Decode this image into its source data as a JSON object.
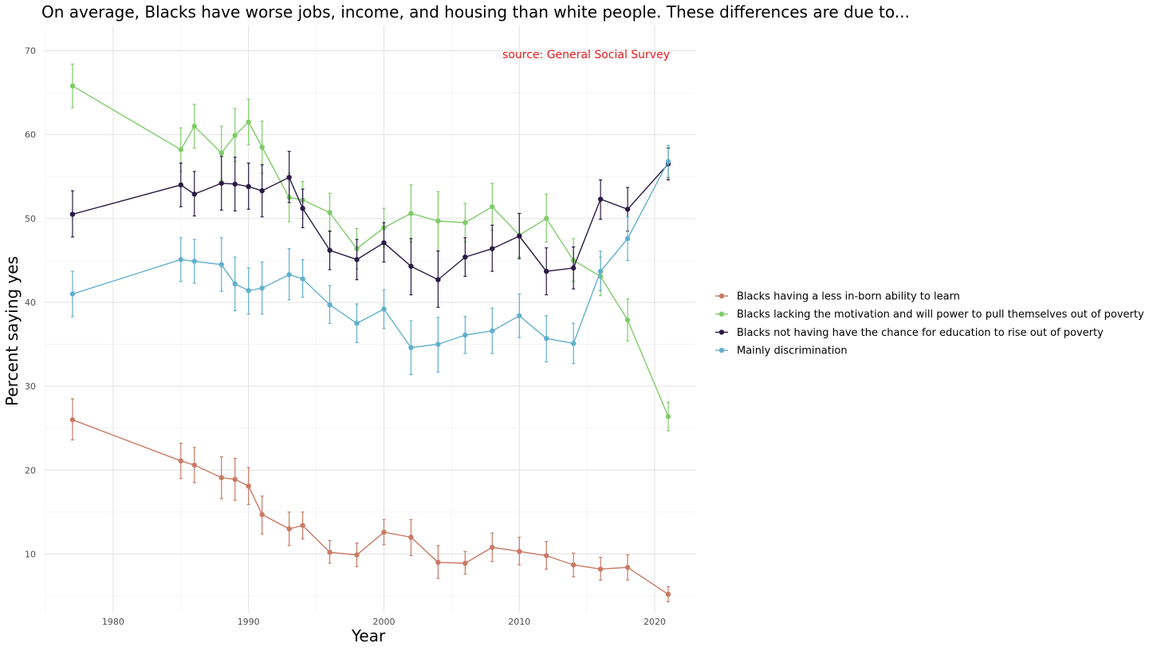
{
  "chart_data": {
    "type": "line",
    "title": "On average, Blacks have worse jobs, income, and housing than white people. These differences are due to...",
    "annotation": "source: General Social Survey",
    "xlabel": "Year",
    "ylabel": "Percent saying yes",
    "xlim": [
      1975,
      2023
    ],
    "ylim": [
      3,
      73
    ],
    "x_ticks": [
      1980,
      1990,
      2000,
      2010,
      2020
    ],
    "y_ticks": [
      10,
      20,
      30,
      40,
      50,
      60,
      70
    ],
    "grid": true,
    "legend_position": "right",
    "colors": {
      "annotation": "#e41a1c"
    },
    "series": [
      {
        "name": "Blacks having a less in-born ability to learn",
        "color": "#c97a64",
        "points": [
          {
            "x": 1977,
            "y": 26.0,
            "lo": 23.6,
            "hi": 28.5
          },
          {
            "x": 1985,
            "y": 21.1,
            "lo": 19.0,
            "hi": 23.2
          },
          {
            "x": 1986,
            "y": 20.6,
            "lo": 18.5,
            "hi": 22.7
          },
          {
            "x": 1988,
            "y": 19.1,
            "lo": 16.6,
            "hi": 21.6
          },
          {
            "x": 1989,
            "y": 18.9,
            "lo": 16.4,
            "hi": 21.4
          },
          {
            "x": 1990,
            "y": 18.1,
            "lo": 15.9,
            "hi": 20.3
          },
          {
            "x": 1991,
            "y": 14.7,
            "lo": 12.4,
            "hi": 16.9
          },
          {
            "x": 1993,
            "y": 13.0,
            "lo": 11.0,
            "hi": 15.0
          },
          {
            "x": 1994,
            "y": 13.4,
            "lo": 11.8,
            "hi": 15.0
          },
          {
            "x": 1996,
            "y": 10.2,
            "lo": 8.9,
            "hi": 11.6
          },
          {
            "x": 1998,
            "y": 9.9,
            "lo": 8.5,
            "hi": 11.3
          },
          {
            "x": 2000,
            "y": 12.6,
            "lo": 11.1,
            "hi": 14.1
          },
          {
            "x": 2002,
            "y": 12.0,
            "lo": 9.8,
            "hi": 14.1
          },
          {
            "x": 2004,
            "y": 9.0,
            "lo": 7.1,
            "hi": 11.0
          },
          {
            "x": 2006,
            "y": 8.9,
            "lo": 7.6,
            "hi": 10.3
          },
          {
            "x": 2008,
            "y": 10.8,
            "lo": 9.1,
            "hi": 12.5
          },
          {
            "x": 2010,
            "y": 10.3,
            "lo": 8.7,
            "hi": 12.0
          },
          {
            "x": 2012,
            "y": 9.8,
            "lo": 8.2,
            "hi": 11.5
          },
          {
            "x": 2014,
            "y": 8.7,
            "lo": 7.3,
            "hi": 10.1
          },
          {
            "x": 2016,
            "y": 8.2,
            "lo": 6.9,
            "hi": 9.6
          },
          {
            "x": 2018,
            "y": 8.4,
            "lo": 6.9,
            "hi": 9.9
          },
          {
            "x": 2021,
            "y": 5.2,
            "lo": 4.3,
            "hi": 6.1
          }
        ]
      },
      {
        "name": "Blacks lacking the motivation and will power to pull themselves out of poverty",
        "color": "#7fcc6a",
        "points": [
          {
            "x": 1977,
            "y": 65.8,
            "lo": 63.2,
            "hi": 68.4
          },
          {
            "x": 1985,
            "y": 58.2,
            "lo": 55.6,
            "hi": 60.8
          },
          {
            "x": 1986,
            "y": 61.0,
            "lo": 58.4,
            "hi": 63.6
          },
          {
            "x": 1988,
            "y": 57.8,
            "lo": 54.6,
            "hi": 61.0
          },
          {
            "x": 1989,
            "y": 59.9,
            "lo": 56.8,
            "hi": 63.1
          },
          {
            "x": 1990,
            "y": 61.5,
            "lo": 58.8,
            "hi": 64.2
          },
          {
            "x": 1991,
            "y": 58.5,
            "lo": 55.4,
            "hi": 61.6
          },
          {
            "x": 1993,
            "y": 52.5,
            "lo": 49.6,
            "hi": 55.4
          },
          {
            "x": 1994,
            "y": 52.2,
            "lo": 50.0,
            "hi": 54.4
          },
          {
            "x": 1996,
            "y": 50.7,
            "lo": 48.4,
            "hi": 53.0
          },
          {
            "x": 1998,
            "y": 46.4,
            "lo": 44.0,
            "hi": 48.8
          },
          {
            "x": 2000,
            "y": 48.9,
            "lo": 46.6,
            "hi": 51.2
          },
          {
            "x": 2002,
            "y": 50.6,
            "lo": 47.2,
            "hi": 54.0
          },
          {
            "x": 2004,
            "y": 49.7,
            "lo": 46.2,
            "hi": 53.2
          },
          {
            "x": 2006,
            "y": 49.5,
            "lo": 47.2,
            "hi": 51.8
          },
          {
            "x": 2008,
            "y": 51.4,
            "lo": 48.6,
            "hi": 54.2
          },
          {
            "x": 2010,
            "y": 48.0,
            "lo": 45.4,
            "hi": 50.6
          },
          {
            "x": 2012,
            "y": 50.0,
            "lo": 47.2,
            "hi": 52.9
          },
          {
            "x": 2014,
            "y": 45.0,
            "lo": 42.5,
            "hi": 47.6
          },
          {
            "x": 2016,
            "y": 43.1,
            "lo": 40.8,
            "hi": 45.4
          },
          {
            "x": 2018,
            "y": 37.9,
            "lo": 35.4,
            "hi": 40.4
          },
          {
            "x": 2021,
            "y": 26.4,
            "lo": 24.7,
            "hi": 28.1
          }
        ]
      },
      {
        "name": "Blacks not having have the chance for education to rise out of poverty",
        "color": "#2b1a45",
        "points": [
          {
            "x": 1977,
            "y": 50.5,
            "lo": 47.8,
            "hi": 53.3
          },
          {
            "x": 1985,
            "y": 54.0,
            "lo": 51.4,
            "hi": 56.6
          },
          {
            "x": 1986,
            "y": 52.9,
            "lo": 50.3,
            "hi": 55.6
          },
          {
            "x": 1988,
            "y": 54.2,
            "lo": 51.0,
            "hi": 57.4
          },
          {
            "x": 1989,
            "y": 54.1,
            "lo": 50.9,
            "hi": 57.3
          },
          {
            "x": 1990,
            "y": 53.8,
            "lo": 51.1,
            "hi": 56.6
          },
          {
            "x": 1991,
            "y": 53.3,
            "lo": 50.2,
            "hi": 56.4
          },
          {
            "x": 1993,
            "y": 54.9,
            "lo": 51.9,
            "hi": 58.0
          },
          {
            "x": 1994,
            "y": 51.2,
            "lo": 48.9,
            "hi": 53.5
          },
          {
            "x": 1996,
            "y": 46.2,
            "lo": 43.9,
            "hi": 48.5
          },
          {
            "x": 1998,
            "y": 45.1,
            "lo": 42.7,
            "hi": 47.5
          },
          {
            "x": 2000,
            "y": 47.1,
            "lo": 44.8,
            "hi": 49.5
          },
          {
            "x": 2002,
            "y": 44.3,
            "lo": 40.9,
            "hi": 47.6
          },
          {
            "x": 2004,
            "y": 42.7,
            "lo": 39.4,
            "hi": 46.1
          },
          {
            "x": 2006,
            "y": 45.4,
            "lo": 43.1,
            "hi": 47.7
          },
          {
            "x": 2008,
            "y": 46.4,
            "lo": 43.7,
            "hi": 49.2
          },
          {
            "x": 2010,
            "y": 47.9,
            "lo": 45.2,
            "hi": 50.6
          },
          {
            "x": 2012,
            "y": 43.7,
            "lo": 40.9,
            "hi": 46.5
          },
          {
            "x": 2014,
            "y": 44.1,
            "lo": 41.6,
            "hi": 46.6
          },
          {
            "x": 2016,
            "y": 52.3,
            "lo": 49.9,
            "hi": 54.6
          },
          {
            "x": 2018,
            "y": 51.1,
            "lo": 48.5,
            "hi": 53.7
          },
          {
            "x": 2021,
            "y": 56.5,
            "lo": 54.6,
            "hi": 58.4
          }
        ]
      },
      {
        "name": "Mainly discrimination",
        "color": "#62b0cd",
        "points": [
          {
            "x": 1977,
            "y": 41.0,
            "lo": 38.3,
            "hi": 43.7
          },
          {
            "x": 1985,
            "y": 45.1,
            "lo": 42.5,
            "hi": 47.7
          },
          {
            "x": 1986,
            "y": 44.9,
            "lo": 42.3,
            "hi": 47.5
          },
          {
            "x": 1988,
            "y": 44.5,
            "lo": 41.3,
            "hi": 47.7
          },
          {
            "x": 1989,
            "y": 42.2,
            "lo": 39.0,
            "hi": 45.4
          },
          {
            "x": 1990,
            "y": 41.4,
            "lo": 38.6,
            "hi": 44.1
          },
          {
            "x": 1991,
            "y": 41.7,
            "lo": 38.6,
            "hi": 44.8
          },
          {
            "x": 1993,
            "y": 43.3,
            "lo": 40.3,
            "hi": 46.4
          },
          {
            "x": 1994,
            "y": 42.8,
            "lo": 40.6,
            "hi": 45.1
          },
          {
            "x": 1996,
            "y": 39.7,
            "lo": 37.5,
            "hi": 42.0
          },
          {
            "x": 1998,
            "y": 37.5,
            "lo": 35.2,
            "hi": 39.8
          },
          {
            "x": 2000,
            "y": 39.2,
            "lo": 36.9,
            "hi": 41.5
          },
          {
            "x": 2002,
            "y": 34.6,
            "lo": 31.4,
            "hi": 37.8
          },
          {
            "x": 2004,
            "y": 35.0,
            "lo": 31.7,
            "hi": 38.2
          },
          {
            "x": 2006,
            "y": 36.1,
            "lo": 33.9,
            "hi": 38.3
          },
          {
            "x": 2008,
            "y": 36.6,
            "lo": 33.9,
            "hi": 39.3
          },
          {
            "x": 2010,
            "y": 38.4,
            "lo": 35.8,
            "hi": 41.0
          },
          {
            "x": 2012,
            "y": 35.7,
            "lo": 32.9,
            "hi": 38.4
          },
          {
            "x": 2014,
            "y": 35.1,
            "lo": 32.7,
            "hi": 37.5
          },
          {
            "x": 2016,
            "y": 43.7,
            "lo": 41.4,
            "hi": 46.1
          },
          {
            "x": 2018,
            "y": 47.6,
            "lo": 45.0,
            "hi": 50.2
          },
          {
            "x": 2021,
            "y": 56.8,
            "lo": 54.9,
            "hi": 58.7
          }
        ]
      }
    ]
  }
}
